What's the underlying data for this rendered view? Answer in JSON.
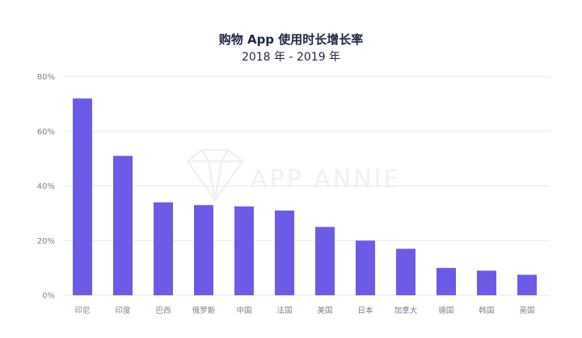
{
  "chart_data": {
    "type": "bar",
    "title": "购物 App 使用时长增长率",
    "subtitle": "2018 年 - 2019 年",
    "categories": [
      "印尼",
      "印度",
      "巴西",
      "俄罗斯",
      "中国",
      "法国",
      "美国",
      "日本",
      "加拿大",
      "德国",
      "韩国",
      "英国"
    ],
    "values": [
      72,
      51,
      34,
      33,
      32.5,
      31,
      25,
      20,
      17,
      10,
      9,
      7.5
    ],
    "ylim": [
      0,
      80
    ],
    "yticks": [
      "0%",
      "20%",
      "40%",
      "60%",
      "80%"
    ],
    "ytick_values": [
      0,
      20,
      40,
      60,
      80
    ],
    "xlabel": "",
    "ylabel": "",
    "grid": true,
    "bar_color": "#6b5be6"
  },
  "watermark": {
    "text": "APP ANNIE",
    "icon": "diamond-logo-icon"
  }
}
